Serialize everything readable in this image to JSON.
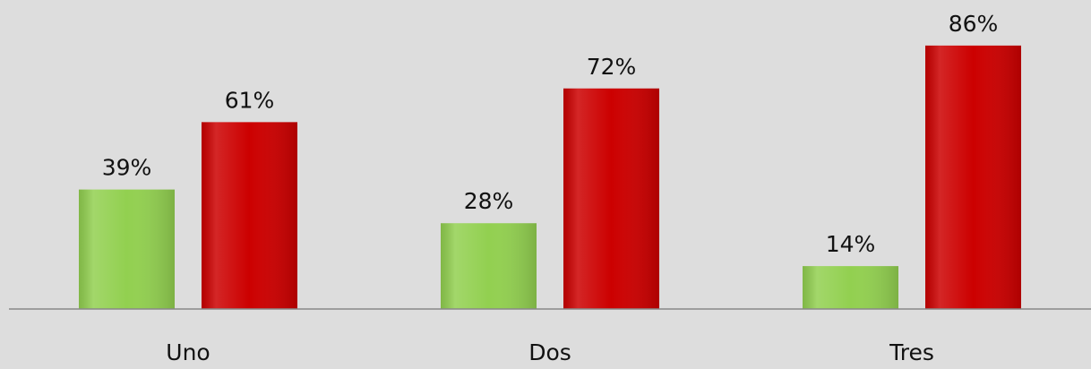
{
  "chart_data": {
    "type": "bar",
    "categories": [
      "Uno",
      "Dos",
      "Tres"
    ],
    "series": [
      {
        "color": "#92d050",
        "values": [
          39,
          28,
          14
        ],
        "value_labels": [
          "39%",
          "28%",
          "14%"
        ]
      },
      {
        "color": "#cc0000",
        "values": [
          61,
          72,
          86
        ],
        "value_labels": [
          "61%",
          "72%",
          "86%"
        ]
      }
    ]
  }
}
